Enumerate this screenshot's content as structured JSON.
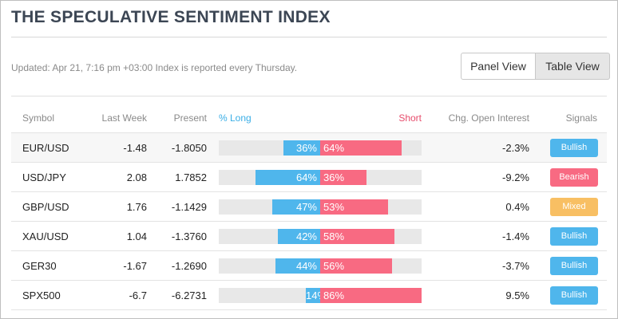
{
  "title": "THE SPECULATIVE SENTIMENT INDEX",
  "updated": "Updated: Apr 21, 7:16 pm +03:00 Index is reported every Thursday.",
  "view_toggle": {
    "panel_label": "Panel View",
    "table_label": "Table View",
    "active": "Table View"
  },
  "columns": {
    "symbol": "Symbol",
    "last_week": "Last Week",
    "present": "Present",
    "long": "% Long",
    "short": "Short",
    "chg_oi": "Chg. Open Interest",
    "signals": "Signals"
  },
  "colors": {
    "long": "#4fb6ec",
    "short": "#f86a82",
    "bullish": "#4fb6ec",
    "bearish": "#f86a82",
    "mixed": "#f8bf63"
  },
  "rows": [
    {
      "symbol": "EUR/USD",
      "last_week": "-1.48",
      "present": "-1.8050",
      "long": 36,
      "short": 64,
      "long_label": "36%",
      "short_label": "64%",
      "chg_oi": "-2.3%",
      "signal": "Bullish",
      "signal_type": "bullish"
    },
    {
      "symbol": "USD/JPY",
      "last_week": "2.08",
      "present": "1.7852",
      "long": 64,
      "short": 36,
      "long_label": "64%",
      "short_label": "36%",
      "chg_oi": "-9.2%",
      "signal": "Bearish",
      "signal_type": "bearish"
    },
    {
      "symbol": "GBP/USD",
      "last_week": "1.76",
      "present": "-1.1429",
      "long": 47,
      "short": 53,
      "long_label": "47%",
      "short_label": "53%",
      "chg_oi": "0.4%",
      "signal": "Mixed",
      "signal_type": "mixed"
    },
    {
      "symbol": "XAU/USD",
      "last_week": "1.04",
      "present": "-1.3760",
      "long": 42,
      "short": 58,
      "long_label": "42%",
      "short_label": "58%",
      "chg_oi": "-1.4%",
      "signal": "Bullish",
      "signal_type": "bullish"
    },
    {
      "symbol": "GER30",
      "last_week": "-1.67",
      "present": "-1.2690",
      "long": 44,
      "short": 56,
      "long_label": "44%",
      "short_label": "56%",
      "chg_oi": "-3.7%",
      "signal": "Bullish",
      "signal_type": "bullish"
    },
    {
      "symbol": "SPX500",
      "last_week": "-6.7",
      "present": "-6.2731",
      "long": 14,
      "short": 86,
      "long_label": "14%",
      "short_label": "86%",
      "chg_oi": "9.5%",
      "signal": "Bullish",
      "signal_type": "bullish"
    }
  ]
}
